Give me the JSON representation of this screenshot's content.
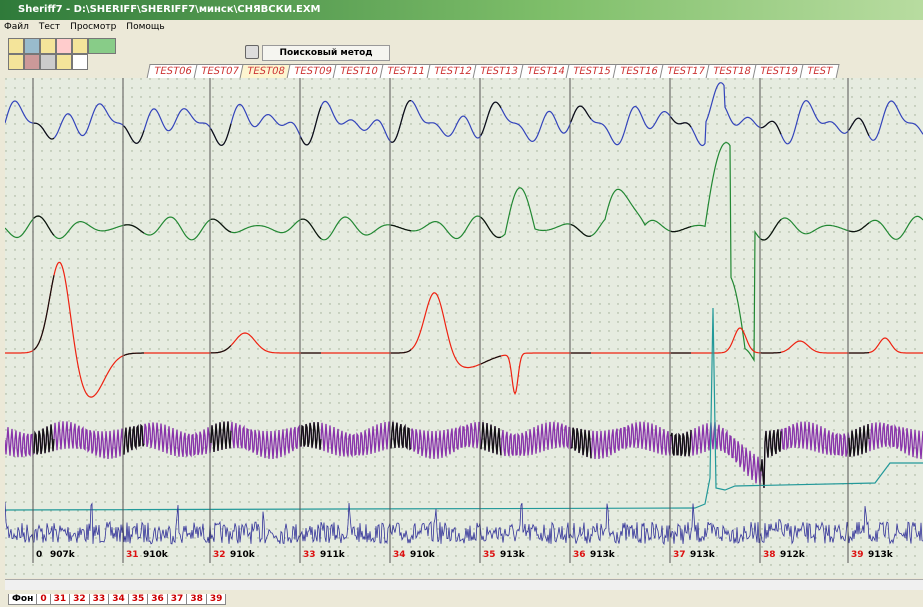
{
  "window": {
    "title": "Sheriff7 - D:\\SHERIFF\\SHERIFF7\\минск\\СНЯВСКИ.EXM"
  },
  "menu": [
    "Файл",
    "Тест",
    "Просмотр",
    "Помощь"
  ],
  "toolbar": {
    "method_button": "Поисковый метод"
  },
  "tabs": [
    "TEST06",
    "TEST07",
    "TEST08",
    "TEST09",
    "TEST10",
    "TEST11",
    "TEST12",
    "TEST13",
    "TEST14",
    "TEST15",
    "TEST16",
    "TEST17",
    "TEST18",
    "TEST19",
    "TEST"
  ],
  "markers": [
    {
      "number": "0",
      "value": "907k"
    },
    {
      "number": "31",
      "value": "910k"
    },
    {
      "number": "32",
      "value": "910k"
    },
    {
      "number": "33",
      "value": "911k"
    },
    {
      "number": "34",
      "value": "910k"
    },
    {
      "number": "35",
      "value": "913k"
    },
    {
      "number": "36",
      "value": "913k"
    },
    {
      "number": "37",
      "value": "913k"
    },
    {
      "number": "38",
      "value": "912k"
    },
    {
      "number": "39",
      "value": "913k"
    }
  ],
  "bottom_tabs": [
    "Фон",
    "0",
    "31",
    "32",
    "33",
    "34",
    "35",
    "36",
    "37",
    "38",
    "39"
  ]
}
